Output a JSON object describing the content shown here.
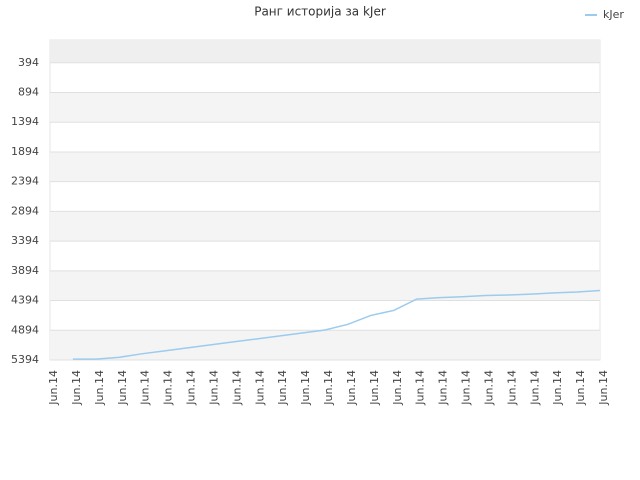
{
  "chart_data": {
    "type": "line",
    "title": "Ранг историја за kJer",
    "categories": [
      "Jun.14",
      "Jun.14",
      "Jun.14",
      "Jun.14",
      "Jun.14",
      "Jun.14",
      "Jun.14",
      "Jun.14",
      "Jun.14",
      "Jun.14",
      "Jun.14",
      "Jun.14",
      "Jun.14",
      "Jun.14",
      "Jun.14",
      "Jun.14",
      "Jun.14",
      "Jun.14",
      "Jun.14",
      "Jun.14",
      "Jun.14",
      "Jun.14",
      "Jun.14",
      "Jun.14",
      "Jun.14"
    ],
    "series": [
      {
        "name": "kJer",
        "color": "#9ccbee",
        "values": [
          null,
          5380,
          5380,
          5350,
          5290,
          5240,
          5190,
          5140,
          5090,
          5040,
          4990,
          4940,
          4890,
          4794,
          4644,
          4560,
          4370,
          4344,
          4330,
          4310,
          4300,
          4285,
          4265,
          4250,
          4225
        ]
      }
    ],
    "ylim": [
      5394,
      11
    ],
    "yticks": [
      394,
      894,
      1394,
      1894,
      2394,
      2894,
      3394,
      3894,
      4394,
      4894,
      5394
    ],
    "grid": true,
    "legend": "top-right"
  }
}
